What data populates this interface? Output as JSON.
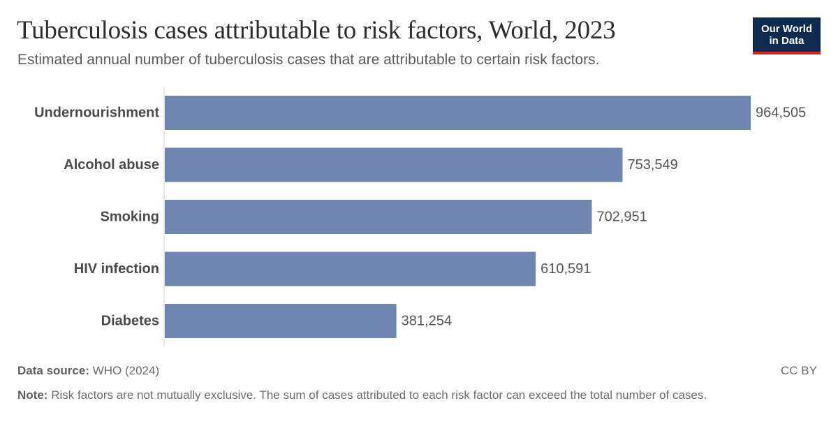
{
  "header": {
    "title": "Tuberculosis cases attributable to risk factors, World, 2023",
    "subtitle": "Estimated annual number of tuberculosis cases that are attributable to certain risk factors."
  },
  "logo": {
    "line1": "Our World",
    "line2": "in Data"
  },
  "chart_data": {
    "type": "bar",
    "orientation": "horizontal",
    "categories": [
      "Undernourishment",
      "Alcohol abuse",
      "Smoking",
      "HIV infection",
      "Diabetes"
    ],
    "values": [
      964505,
      753549,
      702951,
      610591,
      381254
    ],
    "value_labels": [
      "964,505",
      "753,549",
      "702,951",
      "610,591",
      "381,254"
    ],
    "xlim": [
      0,
      964505
    ],
    "grid": false,
    "bar_color": "#6f86b0"
  },
  "footer": {
    "source_label": "Data source:",
    "source_value": "WHO (2024)",
    "license": "CC BY",
    "note_label": "Note:",
    "note_text": "Risk factors are not mutually exclusive. The sum of cases attributed to each risk factor can exceed the total number of cases."
  },
  "colors": {
    "bar": "#6f86b0",
    "title": "#2d2d2d",
    "logo_bg": "#0e2a4f",
    "logo_accent": "#d42b21"
  }
}
